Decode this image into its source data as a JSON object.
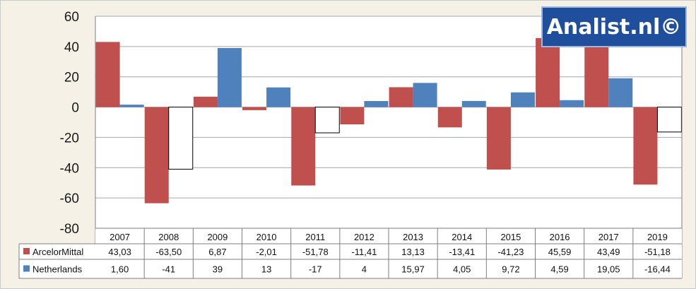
{
  "chart_data": {
    "type": "bar",
    "categories": [
      "2007",
      "2008",
      "2009",
      "2010",
      "2011",
      "2012",
      "2013",
      "2014",
      "2015",
      "2016",
      "2017",
      "2019"
    ],
    "series": [
      {
        "name": "ArcelorMittal",
        "color": "#c0504d",
        "values": [
          43.03,
          -63.5,
          6.87,
          -2.01,
          -51.78,
          -11.41,
          13.13,
          -13.41,
          -41.23,
          45.59,
          43.49,
          -51.18
        ],
        "labels": [
          "43,03",
          "-63,50",
          "6,87",
          "-2,01",
          "-51,78",
          "-11,41",
          "13,13",
          "-13,41",
          "-41,23",
          "45,59",
          "43,49",
          "-51,18"
        ]
      },
      {
        "name": "Netherlands",
        "color": "#4f81bd",
        "negative_fill": "#ffffff",
        "values": [
          1.6,
          -41,
          39,
          13,
          -17,
          4,
          15.97,
          4.05,
          9.72,
          4.59,
          19.05,
          -16.44
        ],
        "labels": [
          "1,60",
          "-41",
          "39",
          "13",
          "-17",
          "4",
          "15,97",
          "4,05",
          "9,72",
          "4,59",
          "19,05",
          "-16,44"
        ]
      }
    ],
    "ylim": [
      -80,
      60
    ],
    "yticks": [
      "60",
      "40",
      "20",
      "0",
      "-20",
      "-40",
      "-60",
      "-80"
    ],
    "grid": true,
    "legend": "data-table",
    "title": "",
    "xlabel": "",
    "ylabel": ""
  },
  "watermark": "Analist.nl©"
}
